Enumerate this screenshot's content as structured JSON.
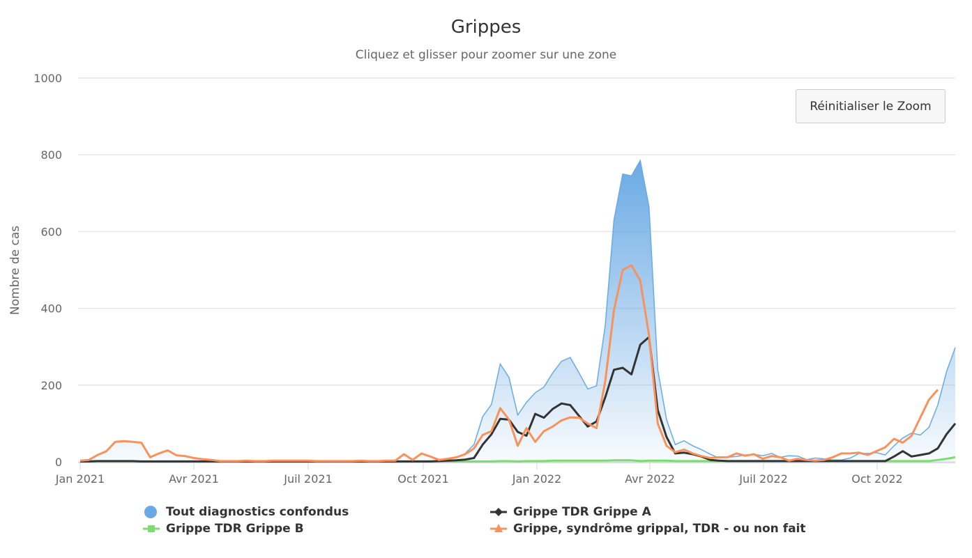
{
  "title": "Grippes",
  "subtitle": "Cliquez et glisser pour zoomer sur une zone",
  "reset_zoom_label": "Réinitialiser le Zoom",
  "y_axis": {
    "label": "Nombre de cas",
    "ticks": [
      "0",
      "200",
      "400",
      "600",
      "800",
      "1000"
    ]
  },
  "x_axis": {
    "ticks": [
      "Jan 2021",
      "Avr 2021",
      "Juil 2021",
      "Oct 2021",
      "Jan 2022",
      "Avr 2022",
      "Juil 2022",
      "Oct 2022"
    ]
  },
  "legend": [
    {
      "label": "Tout diagnostics confondus",
      "color": "#6aaae4",
      "symbol": "circle"
    },
    {
      "label": "Grippe TDR Grippe A",
      "color": "#333333",
      "symbol": "diamond"
    },
    {
      "label": "Grippe TDR Grippe B",
      "color": "#7ddc6f",
      "symbol": "square"
    },
    {
      "label": "Grippe, syndrôme grippal, TDR - ou non fait",
      "color": "#f7925a",
      "symbol": "triangle"
    }
  ],
  "chart_data": {
    "type": "line",
    "title": "Grippes",
    "subtitle": "Cliquez et glisser pour zoomer sur une zone",
    "xlabel": "",
    "ylabel": "Nombre de cas",
    "ylim": [
      0,
      1000
    ],
    "x_range": [
      "2021-01-04",
      "2022-12-26"
    ],
    "x_interval": "weekly",
    "grid": true,
    "legend_position": "bottom",
    "x_tick_labels": [
      "Jan 2021",
      "Avr 2021",
      "Juil 2021",
      "Oct 2021",
      "Jan 2022",
      "Avr 2022",
      "Juil 2022",
      "Oct 2022"
    ],
    "series": [
      {
        "name": "Tout diagnostics confondus",
        "type": "area",
        "color": "#6aaae4",
        "values": [
          3,
          5,
          18,
          28,
          52,
          54,
          52,
          50,
          12,
          22,
          30,
          17,
          15,
          10,
          7,
          5,
          2,
          2,
          2,
          3,
          2,
          2,
          3,
          3,
          3,
          3,
          3,
          2,
          2,
          2,
          2,
          2,
          3,
          2,
          2,
          3,
          3,
          20,
          5,
          22,
          14,
          5,
          8,
          12,
          22,
          45,
          118,
          150,
          255,
          220,
          122,
          155,
          180,
          195,
          232,
          262,
          272,
          232,
          190,
          198,
          355,
          630,
          750,
          745,
          785,
          665,
          240,
          110,
          45,
          55,
          42,
          32,
          20,
          10,
          12,
          14,
          18,
          20,
          16,
          22,
          12,
          16,
          15,
          6,
          10,
          8,
          5,
          5,
          10,
          22,
          22,
          24,
          18,
          42,
          62,
          75,
          70,
          90,
          148,
          235,
          298
        ]
      },
      {
        "name": "Grippe TDR Grippe A",
        "type": "line",
        "color": "#333333",
        "values": [
          1,
          1,
          2,
          2,
          2,
          2,
          2,
          1,
          1,
          1,
          1,
          1,
          1,
          1,
          1,
          1,
          1,
          1,
          1,
          1,
          1,
          1,
          1,
          1,
          1,
          1,
          1,
          1,
          1,
          1,
          1,
          1,
          1,
          1,
          1,
          1,
          1,
          1,
          1,
          1,
          1,
          2,
          3,
          4,
          6,
          10,
          45,
          72,
          112,
          110,
          78,
          68,
          125,
          115,
          138,
          152,
          148,
          120,
          92,
          105,
          168,
          240,
          245,
          228,
          305,
          325,
          135,
          65,
          22,
          24,
          20,
          14,
          5,
          3,
          2,
          2,
          2,
          2,
          2,
          2,
          2,
          2,
          2,
          2,
          2,
          2,
          2,
          2,
          2,
          2,
          2,
          2,
          2,
          14,
          28,
          14,
          18,
          22,
          35,
          72,
          100
        ]
      },
      {
        "name": "Grippe TDR Grippe B",
        "type": "line",
        "color": "#7ddc6f",
        "values": [
          1,
          1,
          1,
          1,
          1,
          1,
          1,
          1,
          1,
          1,
          1,
          1,
          1,
          1,
          1,
          1,
          1,
          1,
          1,
          1,
          1,
          1,
          1,
          1,
          1,
          1,
          1,
          1,
          1,
          1,
          1,
          1,
          1,
          1,
          1,
          1,
          1,
          1,
          1,
          1,
          1,
          1,
          1,
          1,
          1,
          1,
          1,
          1,
          2,
          2,
          1,
          2,
          2,
          2,
          3,
          3,
          3,
          3,
          3,
          3,
          3,
          4,
          4,
          4,
          2,
          3,
          3,
          3,
          2,
          2,
          2,
          2,
          2,
          2,
          2,
          2,
          2,
          2,
          2,
          2,
          2,
          2,
          2,
          2,
          2,
          2,
          2,
          2,
          2,
          2,
          2,
          2,
          2,
          2,
          2,
          2,
          2,
          2,
          5,
          8,
          12
        ]
      },
      {
        "name": "Grippe, syndrôme grippal, TDR - ou non fait",
        "type": "line",
        "color": "#f7925a",
        "values": [
          3,
          5,
          18,
          28,
          52,
          54,
          52,
          50,
          12,
          22,
          30,
          17,
          15,
          10,
          7,
          5,
          2,
          2,
          2,
          3,
          2,
          2,
          3,
          3,
          3,
          3,
          3,
          2,
          2,
          2,
          2,
          2,
          3,
          2,
          2,
          3,
          3,
          20,
          5,
          22,
          14,
          5,
          8,
          12,
          20,
          35,
          70,
          80,
          140,
          110,
          42,
          88,
          52,
          80,
          92,
          108,
          116,
          115,
          100,
          88,
          210,
          395,
          500,
          512,
          472,
          330,
          100,
          42,
          25,
          32,
          22,
          15,
          10,
          12,
          12,
          22,
          16,
          20,
          8,
          15,
          12,
          3,
          8,
          5,
          3,
          5,
          12,
          22,
          22,
          24,
          18,
          28,
          38,
          60,
          50,
          68,
          115,
          162,
          188
        ]
      }
    ]
  }
}
